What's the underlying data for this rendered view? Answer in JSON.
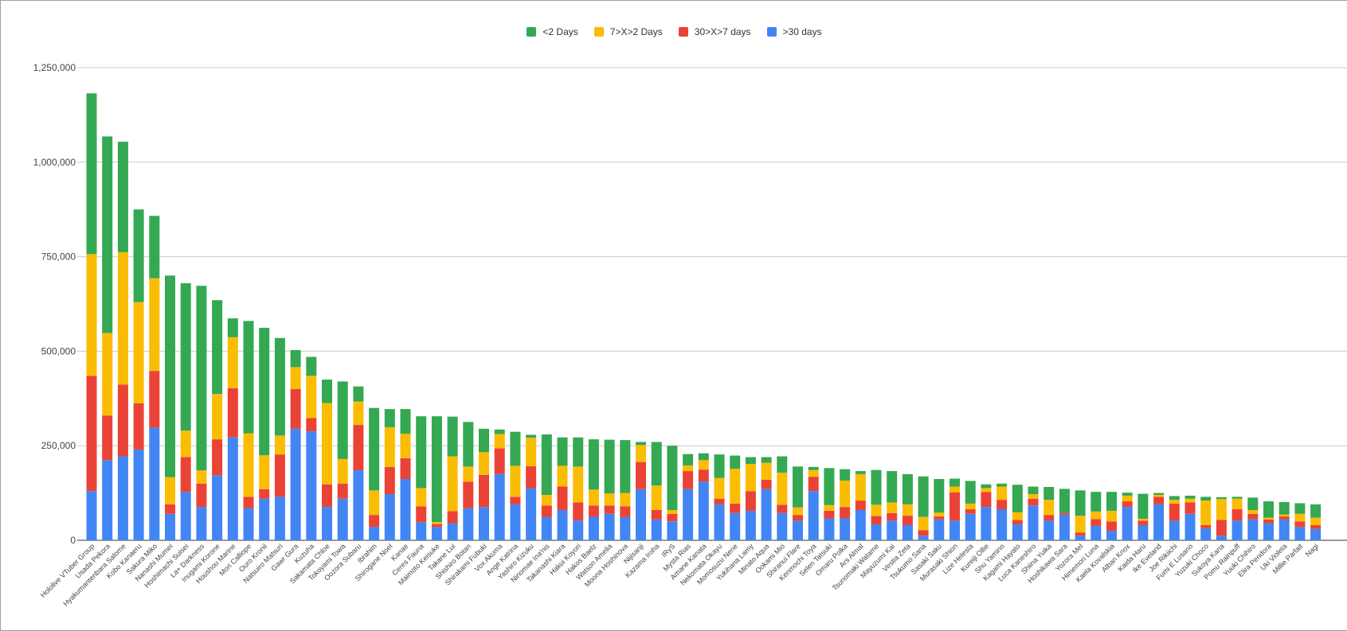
{
  "chart_data": {
    "type": "bar",
    "stacked": true,
    "title": "",
    "xlabel": "",
    "ylabel": "",
    "ylim": [
      0,
      1250000
    ],
    "yticks": [
      0,
      250000,
      500000,
      750000,
      1000000,
      1250000
    ],
    "ytick_labels": [
      "0",
      "250,000",
      "500,000",
      "750,000",
      "1,000,000",
      "1,250,000"
    ],
    "grid": true,
    "legend_position": "top",
    "categories": [
      "Hololive VTuber Group",
      "Usada Pekora",
      "Hyakumantenbara Salome",
      "Kobo Kanaeru",
      "Sakura Miko",
      "Nanashi Mumei",
      "Hoshimachi Suisei",
      "La+ Darkness",
      "Inugami Korone",
      "Houshou Marine",
      "Mori Calliope",
      "Ouro Kronii",
      "Natsuiro Matsuri",
      "Gawr Gura",
      "Kuzuha",
      "Sakamata Chloe",
      "Tokoyami Towa",
      "Oozora Subaru",
      "Ibrahim",
      "Shirogane Noel",
      "Kanae",
      "Ceres Fauna",
      "Maimoto Keisuke",
      "Takane Lui",
      "Shishiro Botan",
      "Shirakami Fubuki",
      "Vox Akuma",
      "Ange Katrina",
      "Yashiro Kizuku",
      "Ninomae Ina'nis",
      "Takanashi Kiara",
      "Hakui Koyori",
      "Hakos Baelz",
      "Watson Amelia",
      "Moona Hoshinova",
      "Nijisanji",
      "Kazama Iroha",
      "IRyS",
      "Mysta Rias",
      "Amane Kanata",
      "Nekomata Okayu",
      "Momosuzu Nene",
      "Yukihana Lamy",
      "Minato Aqua",
      "Ookami Mio",
      "Shiranui Flare",
      "Kenmochi Toya",
      "Selen Tatsuki",
      "Omaru Polka",
      "Ars Almal",
      "Tsunomaki Watame",
      "Mayuzumi Kai",
      "Vestia Zeta",
      "Tsukumo Sana",
      "Sasaki Saku",
      "Murasaki Shion",
      "Lize Helesta",
      "Kureiji Ollie",
      "Shu Yamino",
      "Kagami Hayato",
      "Luca Kaneshiro",
      "Shiina Yuika",
      "Hoshikawa Sara",
      "Yozora Mel",
      "Himemori Luna",
      "Kaela Kovalskia",
      "Alban Knox",
      "Kaida Haru",
      "Ike Eveland",
      "Joe Rikiichi",
      "Fumi E Lusano",
      "Yuzuki Choco",
      "Sukoya Kana",
      "Pomu Rainpuff",
      "Yuuki Chihiro",
      "Elira Pendora",
      "Uki Violeta",
      "Millie Parfait",
      "Nagi"
    ],
    "series": [
      {
        "name": ">30 days",
        "color": "#4285f4",
        "values": [
          130000,
          212000,
          222000,
          240000,
          298000,
          70000,
          128000,
          88000,
          172000,
          272000,
          85000,
          110000,
          115000,
          295000,
          288000,
          88000,
          110000,
          185000,
          35000,
          122000,
          162000,
          48000,
          35000,
          45000,
          85000,
          88000,
          175000,
          95000,
          138000,
          62000,
          80000,
          52000,
          62000,
          70000,
          62000,
          135000,
          55000,
          50000,
          135000,
          155000,
          95000,
          72000,
          78000,
          135000,
          72000,
          52000,
          130000,
          58000,
          58000,
          80000,
          42000,
          52000,
          40000,
          12000,
          55000,
          52000,
          70000,
          88000,
          82000,
          42000,
          92000,
          52000,
          68000,
          12000,
          38000,
          25000,
          88000,
          40000,
          95000,
          52000,
          70000,
          32000,
          12000,
          52000,
          55000,
          45000,
          55000,
          35000,
          30000
        ]
      },
      {
        "name": "30>X>7 days",
        "color": "#ea4335",
        "values": [
          305000,
          118000,
          190000,
          122000,
          150000,
          25000,
          92000,
          62000,
          95000,
          130000,
          30000,
          25000,
          112000,
          105000,
          35000,
          60000,
          40000,
          120000,
          32000,
          72000,
          55000,
          42000,
          8000,
          32000,
          70000,
          85000,
          68000,
          20000,
          58000,
          30000,
          62000,
          48000,
          30000,
          22000,
          28000,
          72000,
          25000,
          20000,
          48000,
          32000,
          15000,
          25000,
          52000,
          25000,
          22000,
          15000,
          38000,
          20000,
          30000,
          25000,
          22000,
          20000,
          25000,
          15000,
          8000,
          75000,
          12000,
          40000,
          25000,
          12000,
          18000,
          15000,
          5000,
          8000,
          18000,
          25000,
          15000,
          12000,
          20000,
          45000,
          30000,
          8000,
          42000,
          30000,
          15000,
          10000,
          8000,
          15000,
          10000
        ]
      },
      {
        "name": "7>X>2 Days",
        "color": "#fbbc04",
        "values": [
          322000,
          218000,
          350000,
          268000,
          245000,
          72000,
          70000,
          35000,
          120000,
          135000,
          168000,
          90000,
          50000,
          58000,
          112000,
          215000,
          65000,
          62000,
          65000,
          105000,
          65000,
          48000,
          5000,
          145000,
          40000,
          60000,
          38000,
          82000,
          75000,
          28000,
          55000,
          95000,
          42000,
          32000,
          35000,
          45000,
          65000,
          10000,
          15000,
          25000,
          55000,
          92000,
          72000,
          45000,
          85000,
          20000,
          18000,
          15000,
          70000,
          70000,
          30000,
          28000,
          30000,
          35000,
          10000,
          15000,
          15000,
          10000,
          35000,
          20000,
          12000,
          40000,
          0,
          45000,
          20000,
          28000,
          15000,
          5000,
          5000,
          10000,
          10000,
          65000,
          55000,
          28000,
          10000,
          5000,
          5000,
          20000,
          20000
        ]
      },
      {
        "name": "<2 Days",
        "color": "#34a853",
        "values": [
          425000,
          520000,
          292000,
          245000,
          165000,
          533000,
          390000,
          488000,
          248000,
          50000,
          297000,
          337000,
          258000,
          45000,
          50000,
          62000,
          205000,
          40000,
          218000,
          48000,
          65000,
          190000,
          280000,
          105000,
          118000,
          62000,
          12000,
          90000,
          8000,
          160000,
          75000,
          77000,
          133000,
          142000,
          140000,
          8000,
          115000,
          170000,
          30000,
          18000,
          62000,
          35000,
          18000,
          15000,
          43000,
          108000,
          8000,
          98000,
          30000,
          8000,
          92000,
          83000,
          80000,
          107000,
          89000,
          21000,
          60000,
          10000,
          8000,
          73000,
          20000,
          34000,
          63000,
          67000,
          52000,
          50000,
          8000,
          66000,
          5000,
          10000,
          8000,
          10000,
          5000,
          5000,
          33000,
          43000,
          33000,
          28000,
          35000
        ]
      }
    ]
  }
}
